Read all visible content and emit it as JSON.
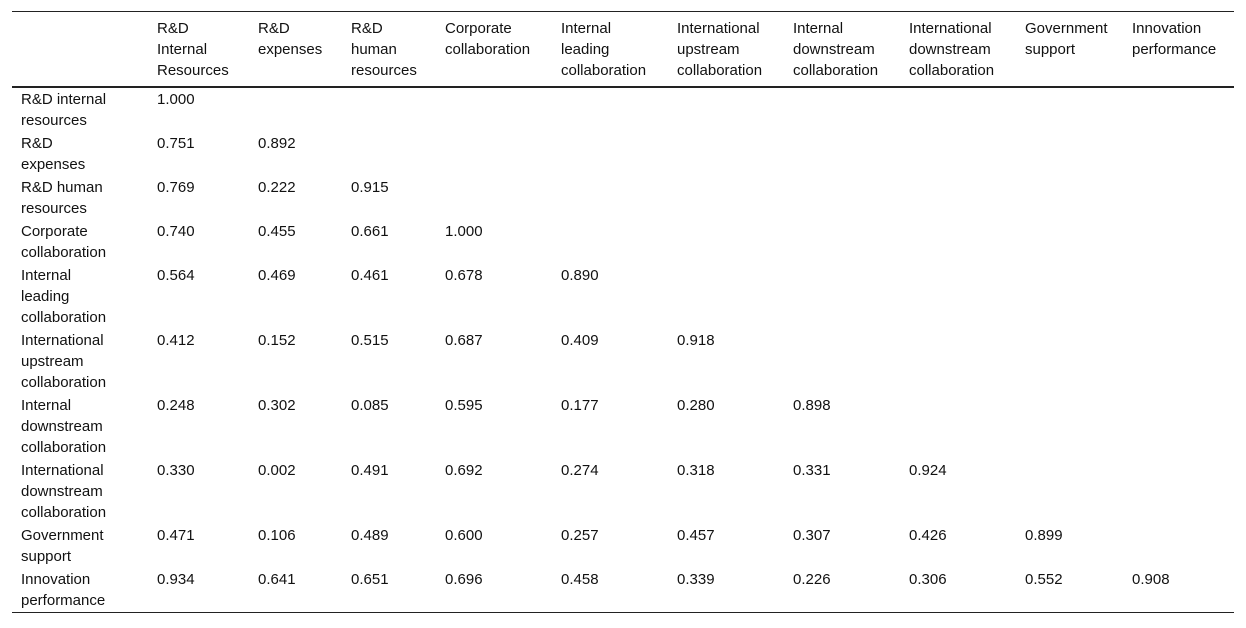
{
  "table": {
    "header": [
      "R&D Internal Resources",
      "R&D expenses",
      "R&D human resources",
      "Corporate collaboration",
      "Internal leading collaboration",
      "International upstream collaboration",
      "Internal downstream collaboration",
      "International downstream collaboration",
      "Government support",
      "Innovation performance"
    ],
    "rows": [
      [
        "R&D internal resources",
        "1.000"
      ],
      [
        "R&D expenses",
        "0.751",
        "0.892"
      ],
      [
        "R&D human resources",
        "0.769",
        "0.222",
        "0.915"
      ],
      [
        "Corporate collaboration",
        "0.740",
        "0.455",
        "0.661",
        "1.000"
      ],
      [
        "Internal leading collaboration",
        "0.564",
        "0.469",
        "0.461",
        "0.678",
        "0.890"
      ],
      [
        "International upstream collaboration",
        "0.412",
        "0.152",
        "0.515",
        "0.687",
        "0.409",
        "0.918"
      ],
      [
        "Internal downstream collaboration",
        "0.248",
        "0.302",
        "0.085",
        "0.595",
        "0.177",
        "0.280",
        "0.898"
      ],
      [
        "International downstream collaboration",
        "0.330",
        "0.002",
        "0.491",
        "0.692",
        "0.274",
        "0.318",
        "0.331",
        "0.924"
      ],
      [
        "Government support",
        "0.471",
        "0.106",
        "0.489",
        "0.600",
        "0.257",
        "0.457",
        "0.307",
        "0.426",
        "0.899"
      ],
      [
        "Innovation performance",
        "0.934",
        "0.641",
        "0.651",
        "0.696",
        "0.458",
        "0.339",
        "0.226",
        "0.306",
        "0.552",
        "0.908"
      ]
    ]
  }
}
